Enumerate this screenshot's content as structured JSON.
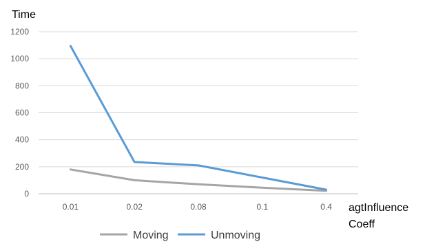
{
  "chart_data": {
    "type": "line",
    "title": "",
    "ylabel": "Time",
    "xlabel": [
      "agtInfluence",
      "Coeff"
    ],
    "categories": [
      "0.01",
      "0.02",
      "0.08",
      "0.1",
      "0.4"
    ],
    "ylim": [
      0,
      1200
    ],
    "yticks": [
      0,
      200,
      400,
      600,
      800,
      1000,
      1200
    ],
    "grid": true,
    "legend": "bottom",
    "series": [
      {
        "name": "Moving",
        "values": [
          180,
          100,
          70,
          45,
          22
        ],
        "color": "#a5a5a5"
      },
      {
        "name": "Unmoving",
        "values": [
          1095,
          235,
          210,
          120,
          30
        ],
        "color": "#5b9bd5"
      }
    ]
  }
}
